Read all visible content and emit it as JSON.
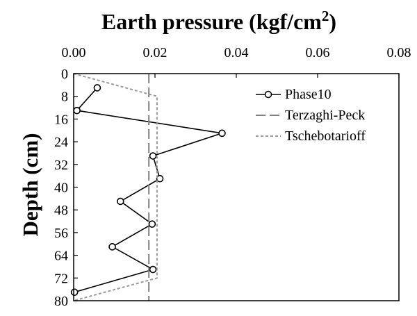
{
  "chart_data": {
    "type": "line",
    "title": "Earth pressure (kgf/cm",
    "title_superscript": "2",
    "title_close": ")",
    "ylabel": "Depth (cm)",
    "xlabel": "",
    "x_axis_position": "top",
    "y_axis_inverted": true,
    "xlim": [
      0,
      0.08
    ],
    "ylim": [
      0,
      80
    ],
    "x_ticks": [
      "0.00",
      "0.02",
      "0.04",
      "0.06",
      "0.08"
    ],
    "y_ticks": [
      "0",
      "8",
      "16",
      "24",
      "32",
      "40",
      "48",
      "56",
      "64",
      "72",
      "80"
    ],
    "grid": false,
    "legend_position": "top-right",
    "series": [
      {
        "name": "Phase10",
        "style": "solid-line-with-open-circles",
        "color": "#000000",
        "x": [
          0.0058,
          0.0008,
          0.0365,
          0.0195,
          0.0212,
          0.0115,
          0.0193,
          0.0095,
          0.0195,
          0.0002
        ],
        "y": [
          5,
          13,
          21,
          29,
          37,
          45,
          53,
          61,
          69,
          77
        ]
      },
      {
        "name": "Terzaghi-Peck",
        "style": "long-dash",
        "color": "#808080",
        "x": [
          0.0185,
          0.0185
        ],
        "y": [
          0,
          80
        ]
      },
      {
        "name": "Tschebotarioff",
        "style": "short-dash",
        "color": "#999999",
        "x": [
          0,
          0.0205,
          0.0205,
          0
        ],
        "y": [
          0,
          8,
          72,
          80
        ]
      }
    ]
  }
}
